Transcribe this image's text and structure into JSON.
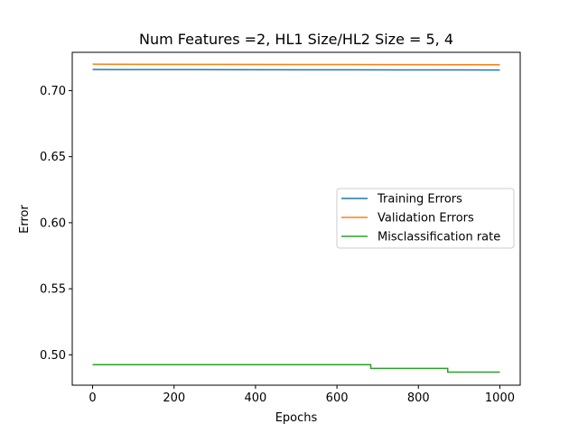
{
  "chart_data": {
    "type": "line",
    "title": "Num Features =2, HL1 Size/HL2 Size = 5, 4",
    "xlabel": "Epochs",
    "ylabel": "Error",
    "xlim": [
      -50,
      1050
    ],
    "ylim": [
      0.477,
      0.729
    ],
    "xticks": [
      0,
      200,
      400,
      600,
      800,
      1000
    ],
    "xtick_labels": [
      "0",
      "200",
      "400",
      "600",
      "800",
      "1000"
    ],
    "yticks": [
      0.5,
      0.55,
      0.6,
      0.65,
      0.7
    ],
    "ytick_labels": [
      "0.50",
      "0.55",
      "0.60",
      "0.65",
      "0.70"
    ],
    "grid": false,
    "legend_position": "center-right",
    "series": [
      {
        "name": "Training Errors",
        "color": "#1f77b4",
        "step": false,
        "x": [
          0,
          250,
          500,
          750,
          1000
        ],
        "y": [
          0.716,
          0.7159,
          0.7158,
          0.7157,
          0.7156
        ]
      },
      {
        "name": "Validation Errors",
        "color": "#ff7f0e",
        "step": false,
        "x": [
          0,
          250,
          500,
          750,
          1000
        ],
        "y": [
          0.72,
          0.7199,
          0.7198,
          0.7197,
          0.7196
        ]
      },
      {
        "name": "Misclassification rate",
        "color": "#2ca02c",
        "step": true,
        "x": [
          0,
          683,
          683,
          872,
          872,
          1000
        ],
        "y": [
          0.4925,
          0.4925,
          0.4897,
          0.4897,
          0.4869,
          0.4869
        ]
      }
    ]
  }
}
